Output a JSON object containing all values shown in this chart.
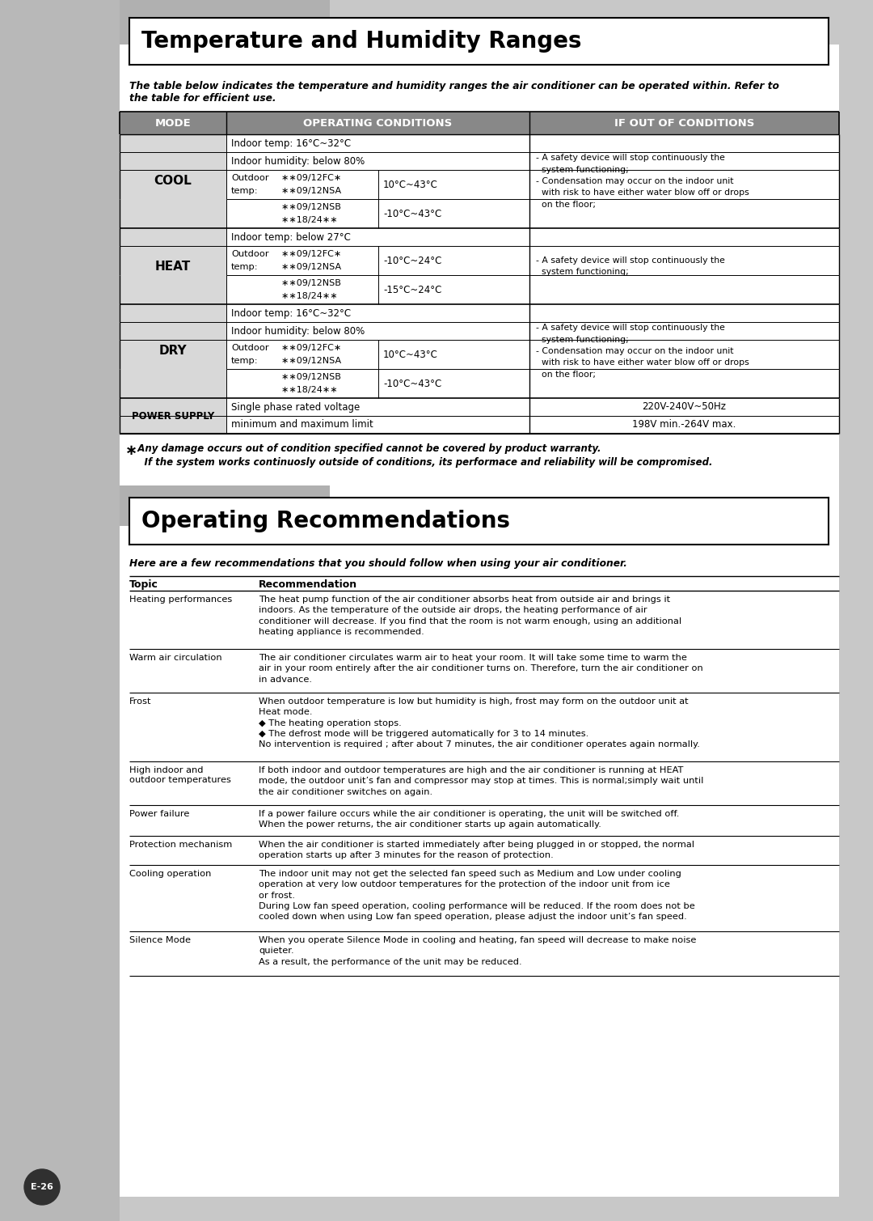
{
  "page_bg": "#c8c8c8",
  "left_strip_bg": "#b8b8b8",
  "white_bg": "#ffffff",
  "header_cell_bg": "#888888",
  "mode_cell_bg": "#d8d8d8",
  "title1": "Temperature and Humidity Ranges",
  "title2": "Operating Recommendations",
  "intro1": "The table below indicates the temperature and humidity ranges the air conditioner can be operated within. Refer to\nthe table for efficient use.",
  "intro2": "Here are a few recommendations that you should follow when using your air conditioner.",
  "footnote_symbol": "∗",
  "footnote1": "  Any damage occurs out of condition specified cannot be covered by product warranty.",
  "footnote2": "    If the system works continuosly outside of conditions, its performace and reliability will be compromised.",
  "page_num": "E-26",
  "rec_col1_header": "Topic",
  "rec_col2_header": "Recommendation",
  "recommendations": [
    {
      "topic": "Heating performances",
      "text": "The heat pump function of the air conditioner absorbs heat from outside air and brings it\nindoors. As the temperature of the outside air drops, the heating performance of air\nconditioner will decrease. If you find that the room is not warm enough, using an additional\nheating appliance is recommended."
    },
    {
      "topic": "Warm air circulation",
      "text": "The air conditioner circulates warm air to heat your room. It will take some time to warm the\nair in your room entirely after the air conditioner turns on. Therefore, turn the air conditioner on\nin advance."
    },
    {
      "topic": "Frost",
      "text": "When outdoor temperature is low but humidity is high, frost may form on the outdoor unit at\nHeat mode.\n◆ The heating operation stops.\n◆ The defrost mode will be triggered automatically for 3 to 14 minutes.\nNo intervention is required ; after about 7 minutes, the air conditioner operates again normally."
    },
    {
      "topic": "High indoor and\noutdoor temperatures",
      "text": "If both indoor and outdoor temperatures are high and the air conditioner is running at HEAT\nmode, the outdoor unit’s fan and compressor may stop at times. This is normal;simply wait until\nthe air conditioner switches on again."
    },
    {
      "topic": "Power failure",
      "text": "If a power failure occurs while the air conditioner is operating, the unit will be switched off.\nWhen the power returns, the air conditioner starts up again automatically."
    },
    {
      "topic": "Protection mechanism",
      "text": "When the air conditioner is started immediately after being plugged in or stopped, the normal\noperation starts up after 3 minutes for the reason of protection."
    },
    {
      "topic": "Cooling operation",
      "text": "The indoor unit may not get the selected fan speed such as Medium and Low under cooling\noperation at very low outdoor temperatures for the protection of the indoor unit from ice\nor frost.\nDuring Low fan speed operation, cooling performance will be reduced. If the room does not be\ncooled down when using Low fan speed operation, please adjust the indoor unit’s fan speed."
    },
    {
      "topic": "Silence Mode",
      "text": "When you operate Silence Mode in cooling and heating, fan speed will decrease to make noise\nquieter.\nAs a result, the performance of the unit may be reduced."
    }
  ]
}
